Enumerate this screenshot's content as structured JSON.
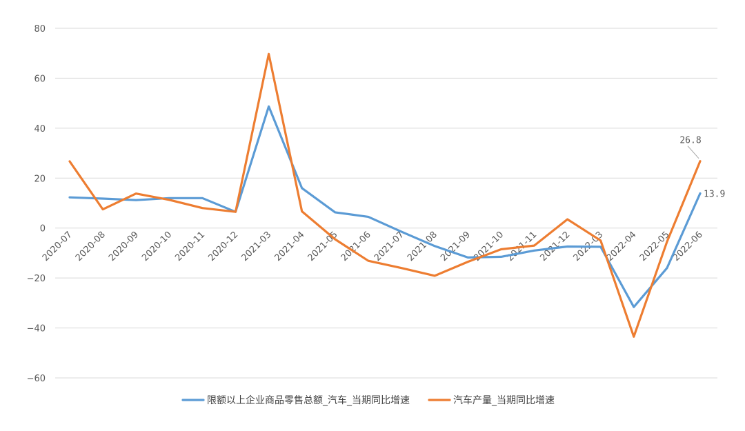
{
  "chart_data": {
    "type": "line",
    "x": [
      "2020-07",
      "2020-08",
      "2020-09",
      "2020-10",
      "2020-11",
      "2020-12",
      "2021-03",
      "2021-04",
      "2021-05",
      "2021-06",
      "2021-07",
      "2021-08",
      "2021-09",
      "2021-10",
      "2021-11",
      "2021-12",
      "2022-03",
      "2022-04",
      "2022-05",
      "2022-06"
    ],
    "series": [
      {
        "name": "限额以上企业商品零售总额_汽车_当期同比增速",
        "color": "#5b9bd5",
        "values": [
          12.3,
          11.8,
          11.2,
          12.0,
          12.0,
          6.5,
          48.7,
          16.0,
          6.3,
          4.5,
          -1.5,
          -7.2,
          -11.8,
          -11.5,
          -9.0,
          -7.4,
          -7.5,
          -31.6,
          -16.0,
          13.9
        ]
      },
      {
        "name": "汽车产量_当期同比增速",
        "color": "#ed7d31",
        "values": [
          26.7,
          7.5,
          13.8,
          11.3,
          8.0,
          6.5,
          69.7,
          6.7,
          -4.5,
          -13.1,
          -16.0,
          -19.1,
          -13.5,
          -8.5,
          -7.0,
          3.5,
          -5.0,
          -43.5,
          -5.5,
          26.8
        ]
      }
    ],
    "ylim": [
      -60,
      80
    ],
    "yticks": [
      "80",
      "60",
      "40",
      "20",
      "0",
      "−20",
      "−40",
      "−60"
    ],
    "ytick_values": [
      80,
      60,
      40,
      20,
      0,
      -20,
      -40,
      -60
    ],
    "annotations": [
      {
        "series": 0,
        "index": 19,
        "text": "13.9"
      },
      {
        "series": 1,
        "index": 19,
        "text": "26.8"
      }
    ],
    "legend": "bottom",
    "grid": true
  }
}
